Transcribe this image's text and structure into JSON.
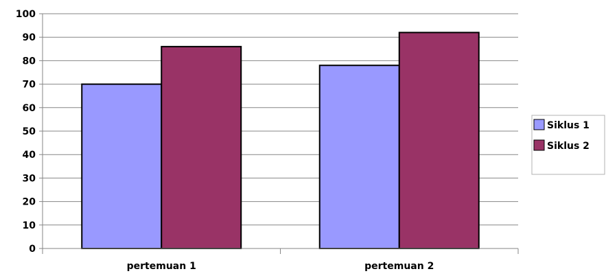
{
  "chart_data": {
    "type": "bar",
    "title": "",
    "xlabel": "",
    "ylabel": "",
    "categories": [
      "pertemuan 1",
      "pertemuan 2"
    ],
    "series": [
      {
        "name": "Siklus 1",
        "values": [
          70,
          78
        ],
        "color": "#9999ff"
      },
      {
        "name": "Siklus 2",
        "values": [
          86,
          92
        ],
        "color": "#993366"
      }
    ],
    "ylim": [
      0,
      100
    ],
    "yticks": [
      "0",
      "10",
      "20",
      "30",
      "40",
      "50",
      "60",
      "70",
      "80",
      "90",
      "100"
    ],
    "grid": true,
    "legend_position": "right"
  }
}
